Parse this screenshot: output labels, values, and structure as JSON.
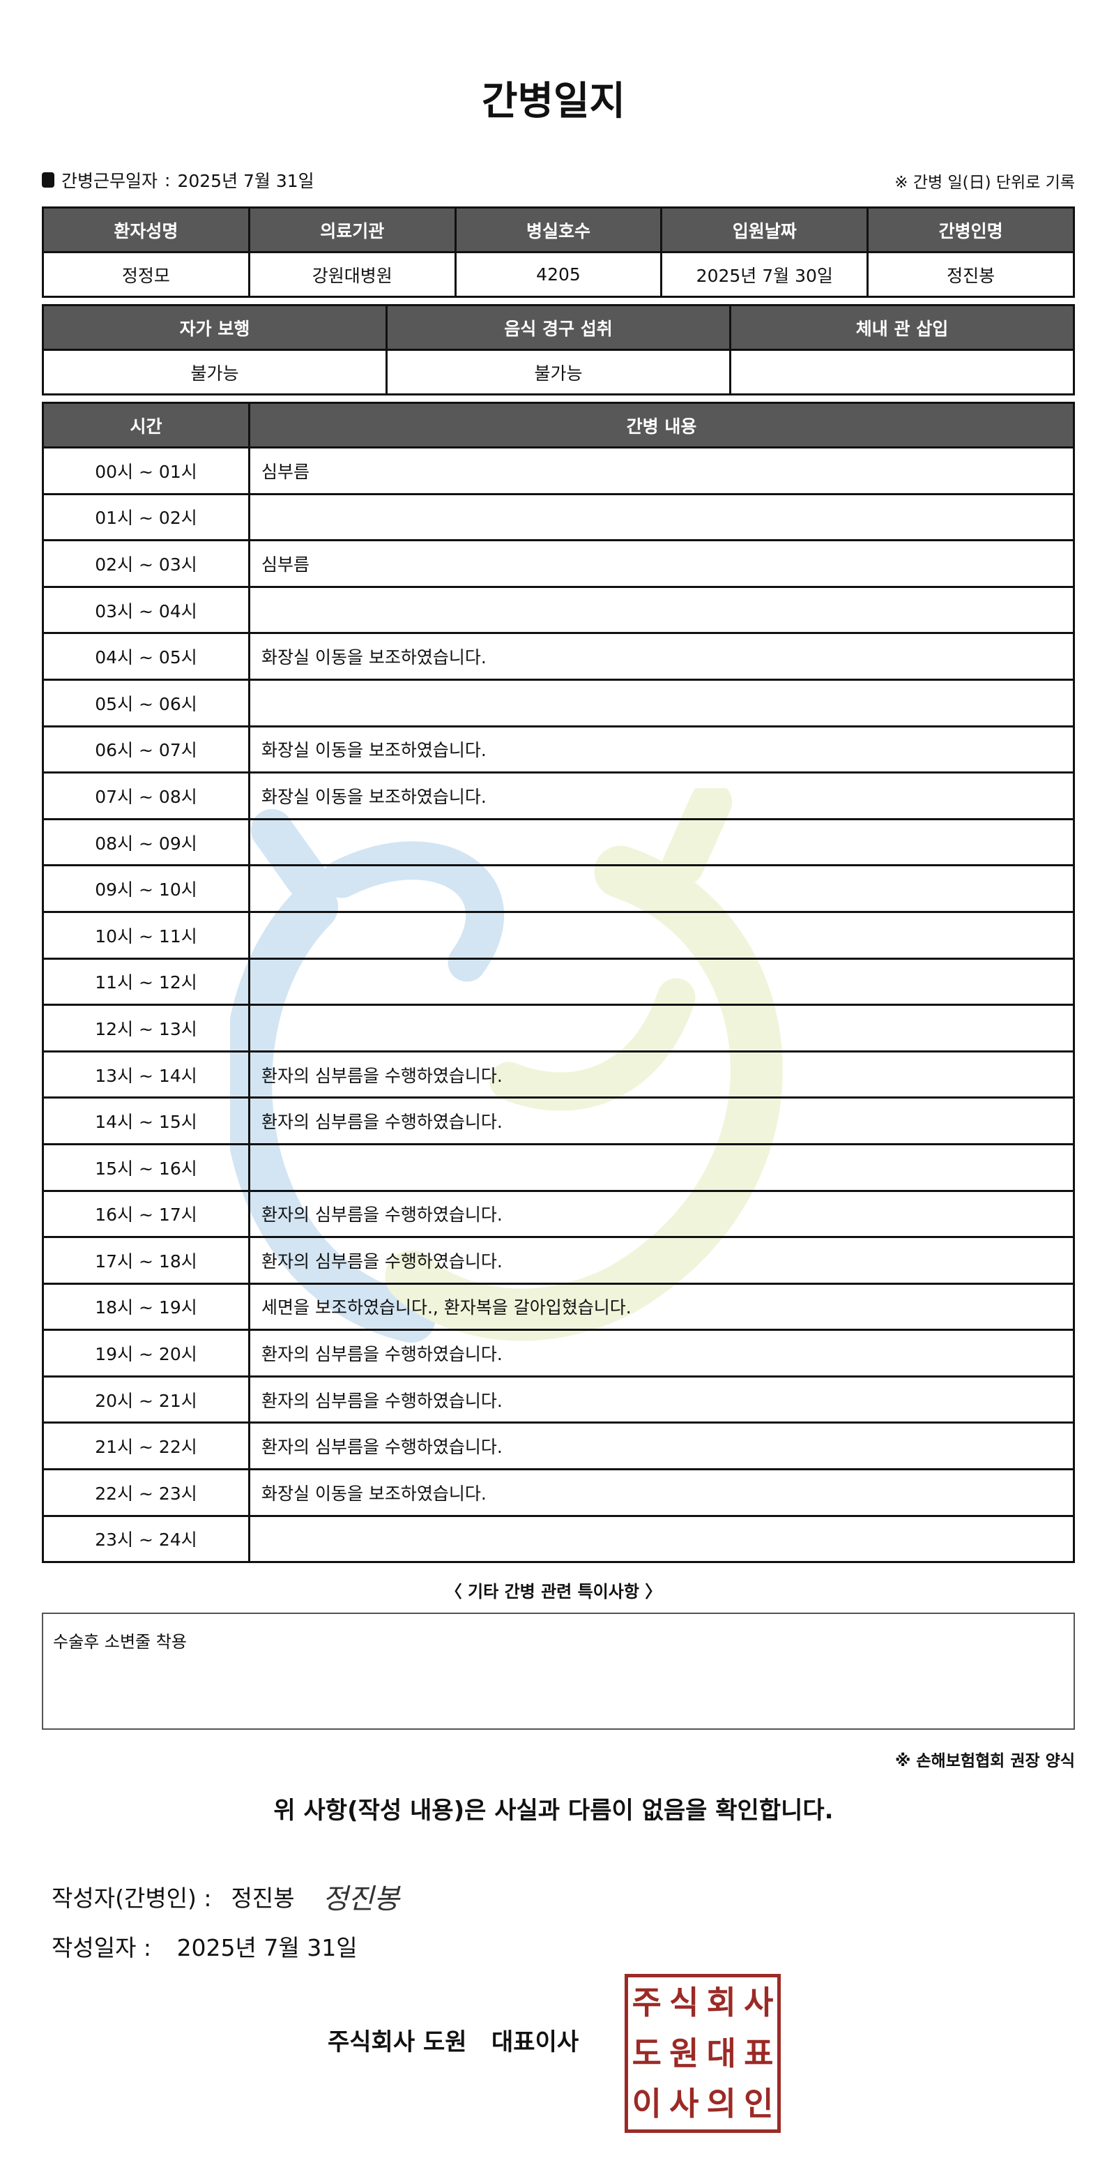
{
  "title": "간병일지",
  "meta": {
    "label": "간병근무일자",
    "sep": ":",
    "value": "2025년 7월 31일",
    "note": "※ 간병 일(日) 단위로 기록"
  },
  "info": {
    "headers": [
      "환자성명",
      "의료기관",
      "병실호수",
      "입원날짜",
      "간병인명"
    ],
    "values": [
      "정정모",
      "강원대병원",
      "4205",
      "2025년 7월 30일",
      "정진봉"
    ]
  },
  "status": {
    "headers": [
      "자가 보행",
      "음식 경구 섭취",
      "체내 관 삽입"
    ],
    "values": [
      "불가능",
      "불가능",
      ""
    ]
  },
  "log": {
    "headers": [
      "시간",
      "간병 내용"
    ],
    "rows": [
      {
        "time": "00시 ~ 01시",
        "content": "심부름"
      },
      {
        "time": "01시 ~ 02시",
        "content": ""
      },
      {
        "time": "02시 ~ 03시",
        "content": "심부름"
      },
      {
        "time": "03시 ~ 04시",
        "content": ""
      },
      {
        "time": "04시 ~ 05시",
        "content": "화장실 이동을 보조하였습니다."
      },
      {
        "time": "05시 ~ 06시",
        "content": ""
      },
      {
        "time": "06시 ~ 07시",
        "content": "화장실 이동을 보조하였습니다."
      },
      {
        "time": "07시 ~ 08시",
        "content": "화장실 이동을 보조하였습니다."
      },
      {
        "time": "08시 ~ 09시",
        "content": ""
      },
      {
        "time": "09시 ~ 10시",
        "content": ""
      },
      {
        "time": "10시 ~ 11시",
        "content": ""
      },
      {
        "time": "11시 ~ 12시",
        "content": ""
      },
      {
        "time": "12시 ~ 13시",
        "content": ""
      },
      {
        "time": "13시 ~ 14시",
        "content": "환자의 심부름을 수행하였습니다."
      },
      {
        "time": "14시 ~ 15시",
        "content": "환자의 심부름을 수행하였습니다."
      },
      {
        "time": "15시 ~ 16시",
        "content": ""
      },
      {
        "time": "16시 ~ 17시",
        "content": "환자의 심부름을 수행하였습니다."
      },
      {
        "time": "17시 ~ 18시",
        "content": "환자의 심부름을 수행하였습니다."
      },
      {
        "time": "18시 ~ 19시",
        "content": "세면을 보조하였습니다., 환자복을 갈아입혔습니다."
      },
      {
        "time": "19시 ~ 20시",
        "content": "환자의 심부름을 수행하였습니다."
      },
      {
        "time": "20시 ~ 21시",
        "content": "환자의 심부름을 수행하였습니다."
      },
      {
        "time": "21시 ~ 22시",
        "content": "환자의 심부름을 수행하였습니다."
      },
      {
        "time": "22시 ~ 23시",
        "content": "화장실 이동을 보조하였습니다."
      },
      {
        "time": "23시 ~ 24시",
        "content": ""
      }
    ]
  },
  "notes": {
    "label": "〈 기타 간병 관련 특이사항 〉",
    "text": "수술후 소변줄 착용"
  },
  "form_note": "※ 손해보험협회 권장 양식",
  "statement": "위 사항(작성 내용)은 사실과 다름이 없음을 확인합니다.",
  "writer": {
    "label": "작성자(간병인) :",
    "name": "정진봉",
    "signature": "정진봉"
  },
  "date": {
    "label": "작성일자 :",
    "value": "2025년 7월 31일"
  },
  "company": "주식회사 도원   대표이사",
  "seal": {
    "text": "주식회사도원대표이사의인",
    "color": "#9b2a26"
  },
  "colors": {
    "header_bg": "#585858",
    "watermark_blue": "#a9cde8",
    "watermark_yellow": "#e3ebb7"
  }
}
